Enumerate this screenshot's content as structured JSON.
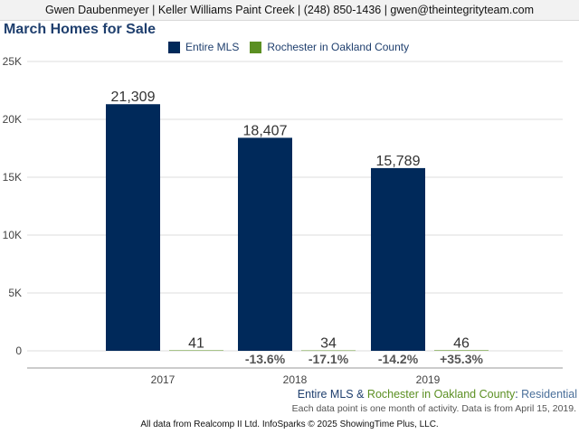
{
  "header": {
    "contact": "Gwen Daubenmeyer | Keller Williams Paint Creek | (248) 850-1436 | gwen@theintegrityteam.com"
  },
  "footer": {
    "subtitle_part1": "Entire MLS",
    "subtitle_part2": " & ",
    "subtitle_part3": "Rochester in Oakland County",
    "subtitle_part4": ": ",
    "subtitle_part5": "Residential",
    "note": "Each data point is one month of activity. Data is from April 15, 2019.",
    "credit": "All data from Realcomp II Ltd. InfoSparks © 2025 ShowingTime Plus, LLC."
  },
  "colors": {
    "entire_mls": "#00295a",
    "rochester": "#5b8f22",
    "title": "#1f3f6e",
    "grid": "#dddddd"
  },
  "chart_data": {
    "type": "bar",
    "title": "March Homes for Sale",
    "categories": [
      "2017",
      "2018",
      "2019"
    ],
    "series": [
      {
        "name": "Entire MLS",
        "values": [
          21309,
          18407,
          15789
        ],
        "labels": [
          "21,309",
          "18,407",
          "15,789"
        ],
        "changes": [
          "",
          "-13.6%",
          "-14.2%"
        ]
      },
      {
        "name": "Rochester in Oakland County",
        "values": [
          41,
          34,
          46
        ],
        "labels": [
          "41",
          "34",
          "46"
        ],
        "changes": [
          "",
          "-17.1%",
          "+35.3%"
        ]
      }
    ],
    "yticks": [
      "0",
      "5K",
      "10K",
      "15K",
      "20K",
      "25K"
    ],
    "ylim": [
      0,
      25000
    ],
    "grid": true,
    "legend": "top"
  }
}
